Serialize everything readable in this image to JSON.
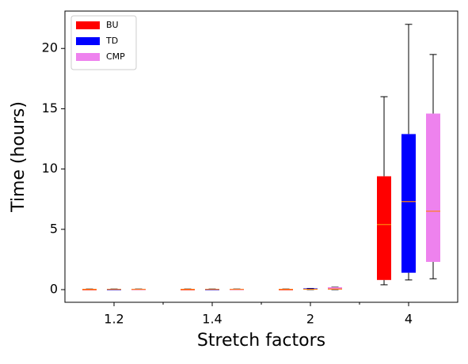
{
  "chart_data": {
    "type": "box",
    "xlabel": "Stretch factors",
    "ylabel": "Time (hours)",
    "categories": [
      "1.2",
      "1.4",
      "2",
      "4"
    ],
    "ylim": [
      -1.05,
      23.1
    ],
    "yticks": [
      0,
      5,
      10,
      15,
      20
    ],
    "legend": "upper left",
    "median_color": "#ff7f0e",
    "series": [
      {
        "name": "BU",
        "color": "#ff0000",
        "stats": [
          {
            "whislo": 0,
            "q1": 0,
            "med": 0.02,
            "q3": 0.05,
            "whishi": 0.05
          },
          {
            "whislo": 0,
            "q1": 0,
            "med": 0.02,
            "q3": 0.05,
            "whishi": 0.05
          },
          {
            "whislo": 0,
            "q1": 0,
            "med": 0.02,
            "q3": 0.05,
            "whishi": 0.05
          },
          {
            "whislo": 0.4,
            "q1": 0.8,
            "med": 5.4,
            "q3": 9.4,
            "whishi": 16
          }
        ]
      },
      {
        "name": "TD",
        "color": "#0000ff",
        "stats": [
          {
            "whislo": 0,
            "q1": 0,
            "med": 0.02,
            "q3": 0.05,
            "whishi": 0.05
          },
          {
            "whislo": 0,
            "q1": 0,
            "med": 0.02,
            "q3": 0.05,
            "whishi": 0.05
          },
          {
            "whislo": 0,
            "q1": 0,
            "med": 0.03,
            "q3": 0.1,
            "whishi": 0.1
          },
          {
            "whislo": 0.8,
            "q1": 1.4,
            "med": 7.3,
            "q3": 12.9,
            "whishi": 22
          }
        ]
      },
      {
        "name": "CMP",
        "color": "#ee82ee",
        "stats": [
          {
            "whislo": 0,
            "q1": 0,
            "med": 0.02,
            "q3": 0.05,
            "whishi": 0.05
          },
          {
            "whislo": 0,
            "q1": 0,
            "med": 0.02,
            "q3": 0.05,
            "whishi": 0.05
          },
          {
            "whislo": 0,
            "q1": 0,
            "med": 0.05,
            "q3": 0.2,
            "whishi": 0.2
          },
          {
            "whislo": 0.9,
            "q1": 2.3,
            "med": 6.5,
            "q3": 14.6,
            "whishi": 19.5
          }
        ]
      }
    ]
  }
}
